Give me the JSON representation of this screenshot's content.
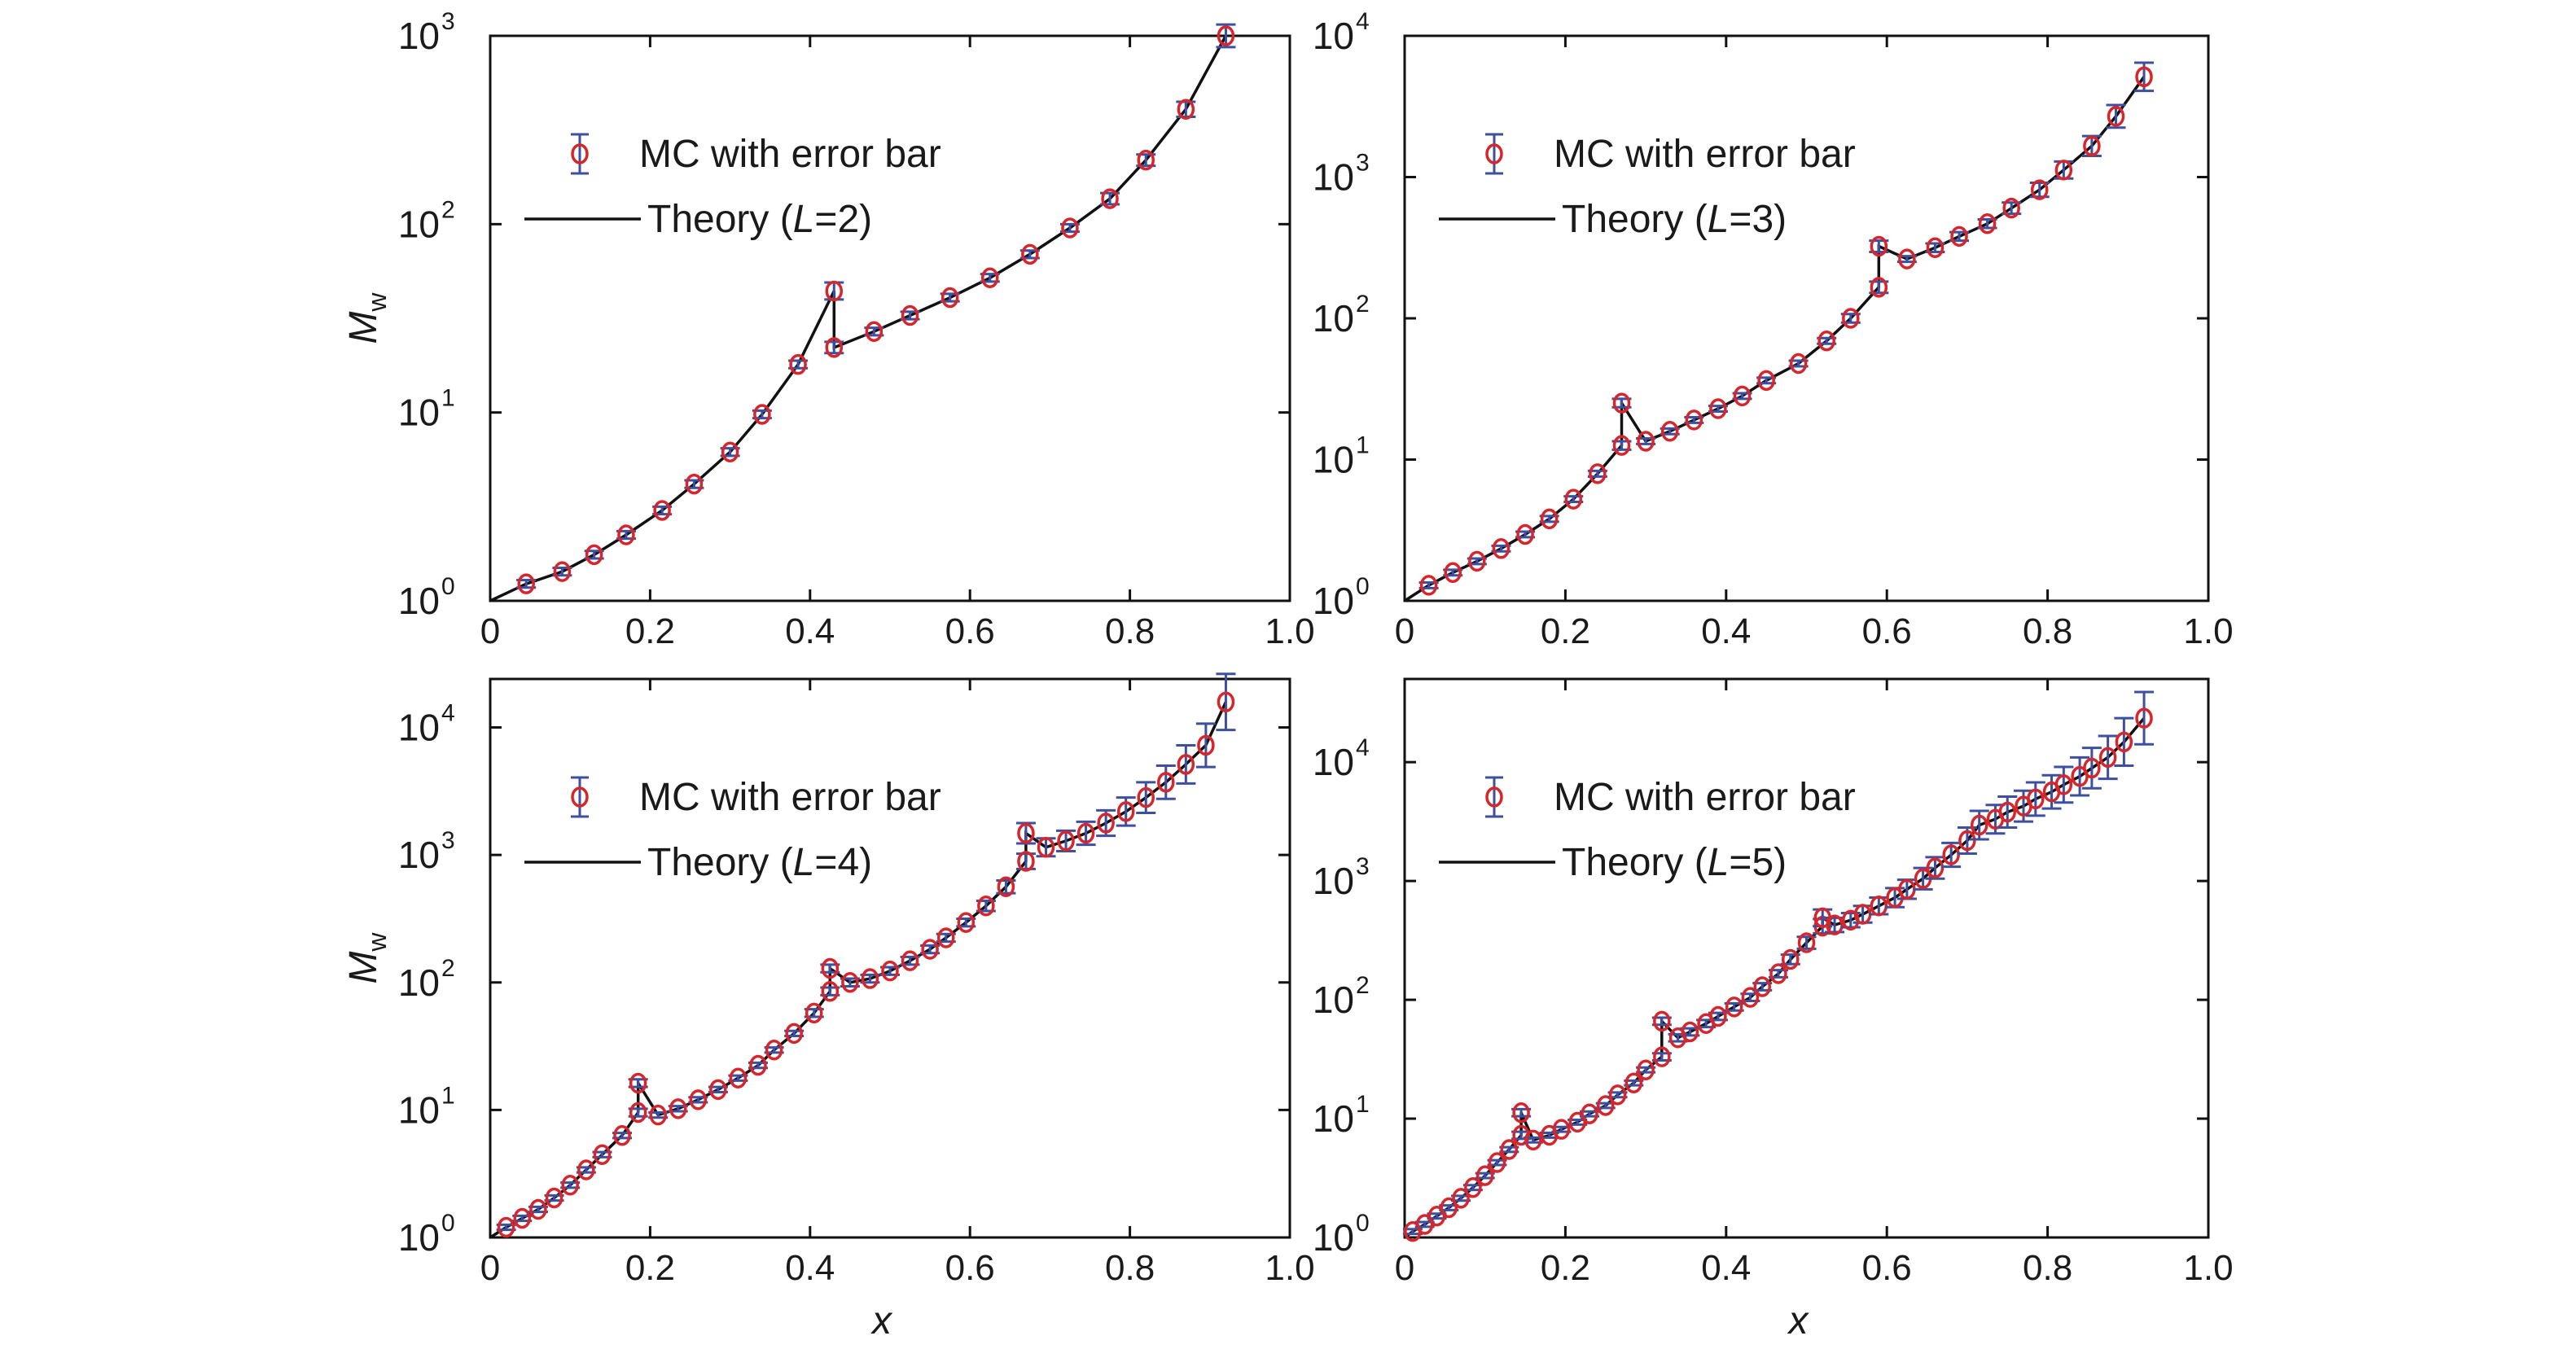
{
  "colors": {
    "marker": "#d7262b",
    "errorbar": "#3d4f9e",
    "theory": "#111111",
    "axis": "#111111"
  },
  "chart_data": [
    {
      "type": "scatter",
      "scale": {
        "y": "log"
      },
      "xlim": [
        0,
        1.0
      ],
      "ylim": [
        0,
        3
      ],
      "xticks": [
        "0",
        "0.2",
        "0.4",
        "0.6",
        "0.8",
        "1.0"
      ],
      "yticks": [
        [
          "10",
          "0"
        ],
        [
          "10",
          "1"
        ],
        [
          "10",
          "2"
        ],
        [
          "10",
          "3"
        ]
      ],
      "ylabel": {
        "main": "M",
        "sub": "w"
      },
      "xlabel": "",
      "legend": {
        "placement": "top-left",
        "mc_label": "MC with error bar",
        "theory_prefix": "Theory (",
        "theory_var": "L",
        "theory_suffix": "=2)"
      },
      "series": [
        {
          "name": "MC with error bar",
          "x": [
            0.045,
            0.09,
            0.13,
            0.17,
            0.215,
            0.255,
            0.3,
            0.34,
            0.385,
            0.43,
            0.43,
            0.48,
            0.525,
            0.575,
            0.625,
            0.675,
            0.725,
            0.775,
            0.82,
            0.87,
            0.92
          ],
          "y": [
            0.09,
            0.155,
            0.245,
            0.35,
            0.48,
            0.62,
            0.79,
            0.99,
            1.255,
            1.645,
            1.345,
            1.43,
            1.515,
            1.61,
            1.715,
            1.84,
            1.98,
            2.135,
            2.34,
            2.61,
            3.0
          ],
          "err": [
            0.02,
            0.02,
            0.02,
            0.02,
            0.02,
            0.02,
            0.02,
            0.02,
            0.02,
            0.045,
            0.03,
            0.02,
            0.02,
            0.02,
            0.02,
            0.02,
            0.02,
            0.03,
            0.03,
            0.04,
            0.06
          ]
        },
        {
          "name": "Theory (L=2)",
          "x": [
            0.0,
            0.045,
            0.09,
            0.13,
            0.17,
            0.215,
            0.255,
            0.3,
            0.34,
            0.385,
            0.43,
            0.43,
            0.48,
            0.525,
            0.575,
            0.625,
            0.675,
            0.725,
            0.775,
            0.82,
            0.87,
            0.92
          ],
          "y": [
            0.0,
            0.09,
            0.155,
            0.245,
            0.35,
            0.48,
            0.62,
            0.79,
            0.99,
            1.255,
            1.645,
            1.345,
            1.43,
            1.515,
            1.61,
            1.715,
            1.84,
            1.98,
            2.135,
            2.34,
            2.61,
            3.0
          ]
        }
      ]
    },
    {
      "type": "scatter",
      "scale": {
        "y": "log"
      },
      "xlim": [
        0,
        1.0
      ],
      "ylim": [
        0,
        4
      ],
      "xticks": [
        "0",
        "0.2",
        "0.4",
        "0.6",
        "0.8",
        "1.0"
      ],
      "yticks": [
        [
          "10",
          "0"
        ],
        [
          "10",
          "1"
        ],
        [
          "10",
          "2"
        ],
        [
          "10",
          "3"
        ],
        [
          "10",
          "4"
        ]
      ],
      "ylabel": null,
      "xlabel": "",
      "legend": {
        "placement": "top-left",
        "mc_label": "MC with error bar",
        "theory_prefix": "Theory (",
        "theory_var": "L",
        "theory_suffix": "=3)"
      },
      "series": [
        {
          "name": "MC with error bar",
          "x": [
            0.03,
            0.06,
            0.09,
            0.12,
            0.15,
            0.18,
            0.21,
            0.24,
            0.27,
            0.27,
            0.3,
            0.33,
            0.36,
            0.39,
            0.42,
            0.45,
            0.49,
            0.525,
            0.555,
            0.59,
            0.59,
            0.625,
            0.66,
            0.69,
            0.725,
            0.755,
            0.79,
            0.82,
            0.855,
            0.885,
            0.92
          ],
          "y": [
            0.11,
            0.2,
            0.28,
            0.37,
            0.47,
            0.58,
            0.72,
            0.9,
            1.1,
            1.4,
            1.13,
            1.2,
            1.28,
            1.36,
            1.45,
            1.56,
            1.68,
            1.84,
            2.0,
            2.22,
            2.51,
            2.42,
            2.5,
            2.58,
            2.67,
            2.78,
            2.91,
            3.05,
            3.22,
            3.43,
            3.71
          ],
          "err": [
            0.02,
            0.02,
            0.02,
            0.02,
            0.02,
            0.02,
            0.02,
            0.02,
            0.03,
            0.03,
            0.02,
            0.02,
            0.02,
            0.02,
            0.02,
            0.02,
            0.02,
            0.02,
            0.03,
            0.04,
            0.04,
            0.02,
            0.03,
            0.03,
            0.03,
            0.04,
            0.05,
            0.06,
            0.07,
            0.08,
            0.1
          ]
        },
        {
          "name": "Theory (L=3)",
          "x": [
            0.0,
            0.03,
            0.06,
            0.09,
            0.12,
            0.15,
            0.18,
            0.21,
            0.24,
            0.27,
            0.27,
            0.3,
            0.33,
            0.36,
            0.39,
            0.42,
            0.45,
            0.49,
            0.525,
            0.555,
            0.59,
            0.59,
            0.625,
            0.66,
            0.69,
            0.725,
            0.755,
            0.79,
            0.82,
            0.855,
            0.885,
            0.92
          ],
          "y": [
            0.0,
            0.11,
            0.2,
            0.28,
            0.37,
            0.47,
            0.58,
            0.72,
            0.9,
            1.1,
            1.4,
            1.13,
            1.2,
            1.28,
            1.36,
            1.45,
            1.56,
            1.68,
            1.84,
            2.0,
            2.22,
            2.51,
            2.42,
            2.5,
            2.58,
            2.67,
            2.78,
            2.91,
            3.05,
            3.22,
            3.43,
            3.71
          ]
        }
      ]
    },
    {
      "type": "scatter",
      "scale": {
        "y": "log"
      },
      "xlim": [
        0,
        1.0
      ],
      "ylim": [
        0,
        4.38
      ],
      "xticks": [
        "0",
        "0.2",
        "0.4",
        "0.6",
        "0.8",
        "1.0"
      ],
      "yticks": [
        [
          "10",
          "0"
        ],
        [
          "10",
          "1"
        ],
        [
          "10",
          "2"
        ],
        [
          "10",
          "3"
        ],
        [
          "10",
          "4"
        ]
      ],
      "ylabel": {
        "main": "M",
        "sub": "w"
      },
      "xlabel": "x",
      "legend": {
        "placement": "top-left",
        "mc_label": "MC with error bar",
        "theory_prefix": "Theory (",
        "theory_var": "L",
        "theory_suffix": "=4)"
      },
      "series": [
        {
          "name": "MC with error bar",
          "x": [
            0.02,
            0.04,
            0.06,
            0.08,
            0.1,
            0.12,
            0.14,
            0.165,
            0.185,
            0.185,
            0.21,
            0.235,
            0.26,
            0.285,
            0.31,
            0.335,
            0.355,
            0.38,
            0.405,
            0.425,
            0.425,
            0.45,
            0.475,
            0.5,
            0.525,
            0.55,
            0.57,
            0.595,
            0.62,
            0.645,
            0.67,
            0.67,
            0.695,
            0.72,
            0.745,
            0.77,
            0.795,
            0.82,
            0.845,
            0.87,
            0.895,
            0.92
          ],
          "y": [
            0.08,
            0.15,
            0.22,
            0.31,
            0.41,
            0.53,
            0.65,
            0.8,
            0.98,
            1.21,
            0.96,
            1.01,
            1.08,
            1.16,
            1.25,
            1.35,
            1.47,
            1.6,
            1.76,
            1.93,
            2.11,
            2.0,
            2.03,
            2.09,
            2.17,
            2.26,
            2.35,
            2.47,
            2.6,
            2.75,
            2.95,
            3.17,
            3.06,
            3.11,
            3.17,
            3.25,
            3.34,
            3.45,
            3.57,
            3.71,
            3.86,
            4.2
          ],
          "err": [
            0.02,
            0.02,
            0.02,
            0.02,
            0.02,
            0.02,
            0.02,
            0.02,
            0.03,
            0.03,
            0.02,
            0.02,
            0.02,
            0.02,
            0.02,
            0.02,
            0.02,
            0.02,
            0.03,
            0.03,
            0.03,
            0.03,
            0.03,
            0.03,
            0.03,
            0.03,
            0.03,
            0.03,
            0.04,
            0.05,
            0.06,
            0.08,
            0.07,
            0.08,
            0.09,
            0.1,
            0.11,
            0.12,
            0.13,
            0.15,
            0.17,
            0.22
          ]
        },
        {
          "name": "Theory (L=4)",
          "x": [
            0.0,
            0.02,
            0.04,
            0.06,
            0.08,
            0.1,
            0.12,
            0.14,
            0.165,
            0.185,
            0.185,
            0.21,
            0.235,
            0.26,
            0.285,
            0.31,
            0.335,
            0.355,
            0.38,
            0.405,
            0.425,
            0.425,
            0.45,
            0.475,
            0.5,
            0.525,
            0.55,
            0.57,
            0.595,
            0.62,
            0.645,
            0.67,
            0.67,
            0.695,
            0.72,
            0.745,
            0.77,
            0.795,
            0.82,
            0.845,
            0.87,
            0.895,
            0.92
          ],
          "y": [
            0.0,
            0.08,
            0.15,
            0.22,
            0.31,
            0.41,
            0.53,
            0.65,
            0.8,
            0.98,
            1.21,
            0.96,
            1.01,
            1.08,
            1.16,
            1.25,
            1.35,
            1.47,
            1.6,
            1.76,
            1.93,
            2.11,
            2.0,
            2.03,
            2.09,
            2.17,
            2.26,
            2.35,
            2.47,
            2.6,
            2.75,
            2.95,
            3.17,
            3.06,
            3.11,
            3.17,
            3.25,
            3.34,
            3.45,
            3.57,
            3.71,
            3.86,
            4.2
          ]
        }
      ]
    },
    {
      "type": "scatter",
      "scale": {
        "y": "log"
      },
      "xlim": [
        0,
        1.0
      ],
      "ylim": [
        0,
        4.7
      ],
      "xticks": [
        "0",
        "0.2",
        "0.4",
        "0.6",
        "0.8",
        "1.0"
      ],
      "yticks": [
        [
          "10",
          "0"
        ],
        [
          "10",
          "1"
        ],
        [
          "10",
          "2"
        ],
        [
          "10",
          "3"
        ],
        [
          "10",
          "4"
        ]
      ],
      "ylabel": null,
      "xlabel": "x",
      "legend": {
        "placement": "top-left",
        "mc_label": "MC with error bar",
        "theory_prefix": "Theory (",
        "theory_var": "L",
        "theory_suffix": "=5)"
      },
      "series": [
        {
          "name": "MC with error bar",
          "x": [
            0.01,
            0.025,
            0.04,
            0.055,
            0.07,
            0.085,
            0.1,
            0.115,
            0.13,
            0.145,
            0.145,
            0.16,
            0.18,
            0.195,
            0.215,
            0.23,
            0.25,
            0.265,
            0.285,
            0.3,
            0.32,
            0.32,
            0.34,
            0.355,
            0.375,
            0.39,
            0.41,
            0.43,
            0.445,
            0.465,
            0.48,
            0.5,
            0.52,
            0.52,
            0.535,
            0.555,
            0.57,
            0.59,
            0.61,
            0.625,
            0.645,
            0.66,
            0.68,
            0.7,
            0.715,
            0.735,
            0.75,
            0.77,
            0.785,
            0.805,
            0.82,
            0.84,
            0.855,
            0.875,
            0.895,
            0.92
          ],
          "y": [
            0.05,
            0.11,
            0.18,
            0.25,
            0.33,
            0.42,
            0.52,
            0.63,
            0.74,
            0.86,
            1.05,
            0.82,
            0.86,
            0.91,
            0.97,
            1.04,
            1.11,
            1.2,
            1.3,
            1.41,
            1.52,
            1.82,
            1.68,
            1.73,
            1.8,
            1.86,
            1.94,
            2.02,
            2.11,
            2.22,
            2.34,
            2.48,
            2.62,
            2.69,
            2.63,
            2.67,
            2.72,
            2.79,
            2.86,
            2.93,
            3.02,
            3.11,
            3.22,
            3.34,
            3.47,
            3.52,
            3.58,
            3.63,
            3.69,
            3.75,
            3.81,
            3.88,
            3.95,
            4.04,
            4.17,
            4.37
          ],
          "err": [
            0.02,
            0.02,
            0.02,
            0.02,
            0.02,
            0.02,
            0.02,
            0.02,
            0.02,
            0.03,
            0.03,
            0.02,
            0.02,
            0.02,
            0.02,
            0.02,
            0.02,
            0.02,
            0.02,
            0.02,
            0.03,
            0.03,
            0.03,
            0.03,
            0.03,
            0.03,
            0.03,
            0.03,
            0.03,
            0.03,
            0.04,
            0.05,
            0.06,
            0.07,
            0.06,
            0.06,
            0.07,
            0.07,
            0.08,
            0.08,
            0.09,
            0.09,
            0.1,
            0.11,
            0.12,
            0.12,
            0.13,
            0.13,
            0.14,
            0.14,
            0.15,
            0.16,
            0.17,
            0.18,
            0.2,
            0.22
          ]
        },
        {
          "name": "Theory (L=5)",
          "x": [
            0.0,
            0.01,
            0.025,
            0.04,
            0.055,
            0.07,
            0.085,
            0.1,
            0.115,
            0.13,
            0.145,
            0.145,
            0.16,
            0.18,
            0.195,
            0.215,
            0.23,
            0.25,
            0.265,
            0.285,
            0.3,
            0.32,
            0.32,
            0.34,
            0.355,
            0.375,
            0.39,
            0.41,
            0.43,
            0.445,
            0.465,
            0.48,
            0.5,
            0.52,
            0.52,
            0.535,
            0.555,
            0.57,
            0.59,
            0.61,
            0.625,
            0.645,
            0.66,
            0.68,
            0.7,
            0.715,
            0.735,
            0.75,
            0.77,
            0.785,
            0.805,
            0.82,
            0.84,
            0.855,
            0.875,
            0.895,
            0.92
          ],
          "y": [
            0.0,
            0.05,
            0.11,
            0.18,
            0.25,
            0.33,
            0.42,
            0.52,
            0.63,
            0.74,
            0.86,
            1.05,
            0.82,
            0.86,
            0.91,
            0.97,
            1.04,
            1.11,
            1.2,
            1.3,
            1.41,
            1.52,
            1.82,
            1.68,
            1.73,
            1.8,
            1.86,
            1.94,
            2.02,
            2.11,
            2.22,
            2.34,
            2.48,
            2.62,
            2.69,
            2.63,
            2.67,
            2.72,
            2.79,
            2.86,
            2.93,
            3.02,
            3.11,
            3.22,
            3.34,
            3.47,
            3.52,
            3.58,
            3.63,
            3.69,
            3.75,
            3.81,
            3.88,
            3.95,
            4.04,
            4.17,
            4.37
          ]
        }
      ]
    }
  ]
}
